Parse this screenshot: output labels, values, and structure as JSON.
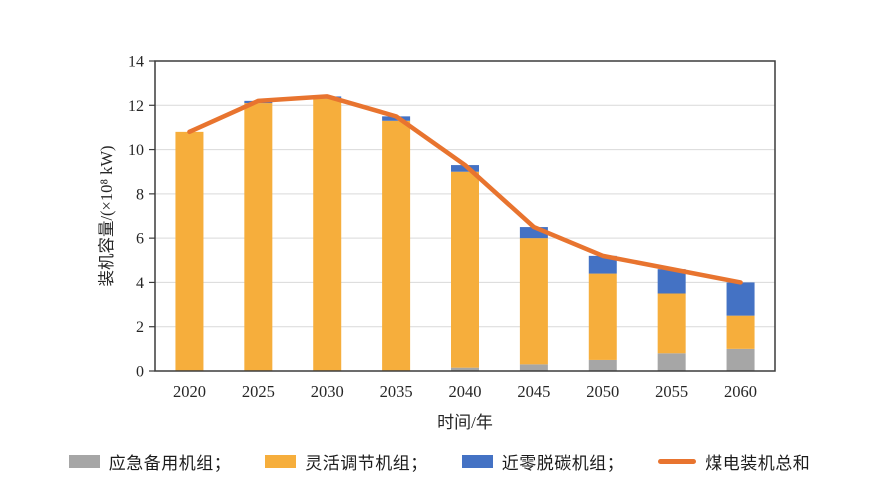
{
  "chart_data": {
    "type": "bar",
    "stacked": true,
    "title": "",
    "xlabel": "时间/年",
    "ylabel": "装机容量/(×10⁸ kW)",
    "ylim": [
      0,
      14
    ],
    "yticks": [
      0,
      2,
      4,
      6,
      8,
      10,
      12,
      14
    ],
    "grid": "horizontal",
    "legend_position": "bottom",
    "categories": [
      "2020",
      "2025",
      "2030",
      "2035",
      "2040",
      "2045",
      "2050",
      "2055",
      "2060"
    ],
    "series": [
      {
        "name": "应急备用机组",
        "color": "#A6A6A6",
        "values": [
          0,
          0,
          0,
          0,
          0.15,
          0.3,
          0.5,
          0.8,
          1.0
        ]
      },
      {
        "name": "灵活调节机组",
        "color": "#F6AE3C",
        "values": [
          10.8,
          12.1,
          12.3,
          11.3,
          8.85,
          5.7,
          3.9,
          2.7,
          1.5
        ]
      },
      {
        "name": "近零脱碳机组",
        "color": "#4472C4",
        "values": [
          0,
          0.1,
          0.1,
          0.2,
          0.3,
          0.5,
          0.8,
          1.1,
          1.5
        ]
      }
    ],
    "line_series": {
      "name": "煤电装机总和",
      "color": "#E8742F",
      "values": [
        10.8,
        12.2,
        12.4,
        11.5,
        9.3,
        6.5,
        5.2,
        4.6,
        4.0
      ]
    },
    "colors": {
      "grid": "#D9D9D9",
      "plot_border": "#3B3B3B",
      "text": "#262626"
    }
  },
  "legend": {
    "items": [
      {
        "label": "应急备用机组；",
        "swatch": "rect",
        "color": "#A6A6A6"
      },
      {
        "label": "灵活调节机组；",
        "swatch": "rect",
        "color": "#F6AE3C"
      },
      {
        "label": "近零脱碳机组；",
        "swatch": "rect",
        "color": "#4472C4"
      },
      {
        "label": "煤电装机总和",
        "swatch": "line",
        "color": "#E8742F"
      }
    ]
  }
}
